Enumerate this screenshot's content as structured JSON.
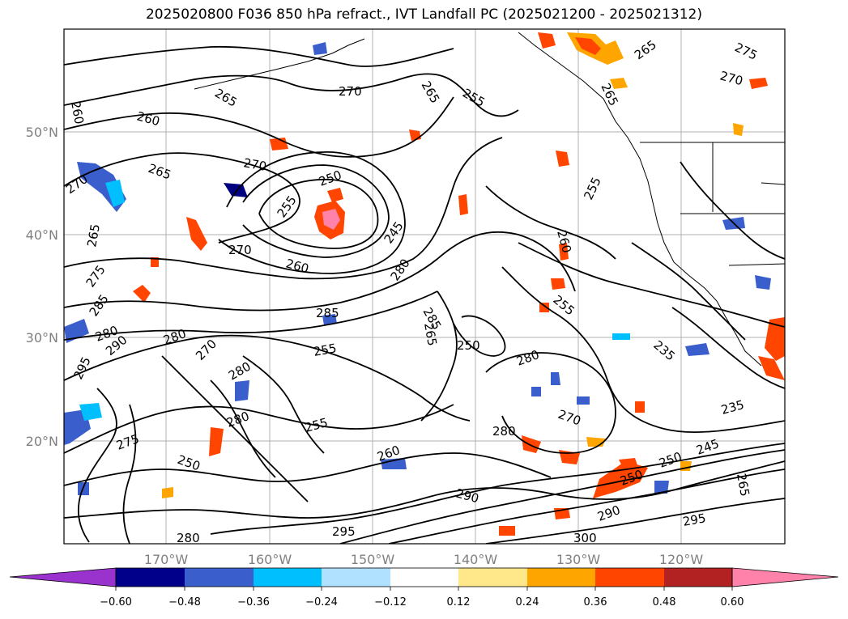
{
  "title": "2025020800 F036 850 hPa refract., IVT Landfall PC (2025021200 - 2025021312)",
  "map": {
    "lat_labels": [
      "50°N",
      "40°N",
      "30°N",
      "20°N"
    ],
    "lon_labels": [
      "170°W",
      "160°W",
      "150°W",
      "140°W",
      "130°W",
      "120°W"
    ],
    "contour_labels": [
      "260",
      "260",
      "265",
      "265",
      "270",
      "265",
      "255",
      "270",
      "275",
      "265",
      "270",
      "265",
      "270",
      "250",
      "255",
      "245",
      "255",
      "265",
      "270",
      "260",
      "275",
      "285",
      "280",
      "260",
      "255",
      "285",
      "280",
      "290",
      "295",
      "280",
      "270",
      "285",
      "250",
      "280",
      "255",
      "280",
      "275",
      "265",
      "235",
      "250",
      "280",
      "270",
      "280",
      "290",
      "260",
      "250",
      "245",
      "295",
      "280",
      "255",
      "300",
      "295",
      "290",
      "235",
      "245",
      "250",
      "265"
    ],
    "colors": {
      "neg_strong": "#000080",
      "neg_mid": "#3a5fcd",
      "neg_light": "#00bfff",
      "neg_pale": "#b0e2ff",
      "pos_pale": "#ffe88a",
      "pos_orange": "#ffa500",
      "pos_red": "#ff4500",
      "pos_dark": "#b22222",
      "pos_pink": "#ff82ab"
    }
  },
  "colorbar": {
    "tick_labels": [
      "−0.60",
      "−0.48",
      "−0.36",
      "−0.24",
      "−0.12",
      "0.12",
      "0.24",
      "0.36",
      "0.48",
      "0.60"
    ],
    "colors": [
      "#9a32cd",
      "#00008b",
      "#3a5fcd",
      "#00bfff",
      "#b0e2ff",
      "#ffffff",
      "#ffe88a",
      "#ffa500",
      "#ff4500",
      "#b22222",
      "#ff82ab"
    ]
  }
}
